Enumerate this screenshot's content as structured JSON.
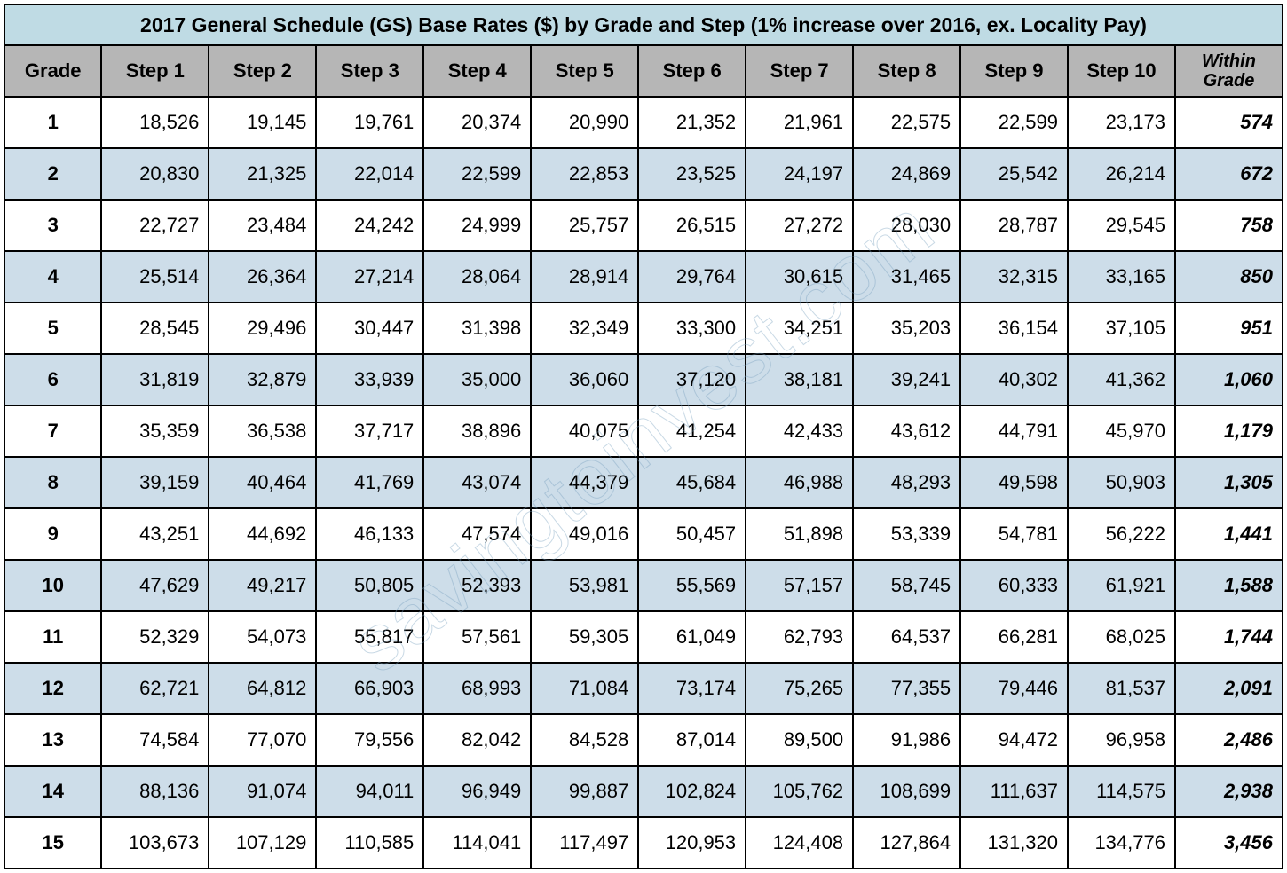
{
  "title": "2017 General Schedule (GS) Base Rates ($) by Grade and Step (1% increase over 2016, ex. Locality Pay)",
  "watermark": "savingtoinvest.com",
  "colors": {
    "title_bg": "#bfdbe4",
    "header_bg": "#b6b6b6",
    "row_alt_bg": "#cddde9",
    "row_bg": "#ffffff",
    "border": "#000000"
  },
  "columns": [
    "Grade",
    "Step 1",
    "Step 2",
    "Step 3",
    "Step 4",
    "Step 5",
    "Step 6",
    "Step 7",
    "Step 8",
    "Step 9",
    "Step 10",
    "Within Grade"
  ],
  "col_widths_pct": [
    7.6,
    8.4,
    8.4,
    8.4,
    8.4,
    8.4,
    8.4,
    8.4,
    8.4,
    8.4,
    8.4,
    8.4
  ],
  "rows": [
    {
      "grade": "1",
      "vals": [
        "18,526",
        "19,145",
        "19,761",
        "20,374",
        "20,990",
        "21,352",
        "21,961",
        "22,575",
        "22,599",
        "23,173"
      ],
      "wg": "574"
    },
    {
      "grade": "2",
      "vals": [
        "20,830",
        "21,325",
        "22,014",
        "22,599",
        "22,853",
        "23,525",
        "24,197",
        "24,869",
        "25,542",
        "26,214"
      ],
      "wg": "672"
    },
    {
      "grade": "3",
      "vals": [
        "22,727",
        "23,484",
        "24,242",
        "24,999",
        "25,757",
        "26,515",
        "27,272",
        "28,030",
        "28,787",
        "29,545"
      ],
      "wg": "758"
    },
    {
      "grade": "4",
      "vals": [
        "25,514",
        "26,364",
        "27,214",
        "28,064",
        "28,914",
        "29,764",
        "30,615",
        "31,465",
        "32,315",
        "33,165"
      ],
      "wg": "850"
    },
    {
      "grade": "5",
      "vals": [
        "28,545",
        "29,496",
        "30,447",
        "31,398",
        "32,349",
        "33,300",
        "34,251",
        "35,203",
        "36,154",
        "37,105"
      ],
      "wg": "951"
    },
    {
      "grade": "6",
      "vals": [
        "31,819",
        "32,879",
        "33,939",
        "35,000",
        "36,060",
        "37,120",
        "38,181",
        "39,241",
        "40,302",
        "41,362"
      ],
      "wg": "1,060"
    },
    {
      "grade": "7",
      "vals": [
        "35,359",
        "36,538",
        "37,717",
        "38,896",
        "40,075",
        "41,254",
        "42,433",
        "43,612",
        "44,791",
        "45,970"
      ],
      "wg": "1,179"
    },
    {
      "grade": "8",
      "vals": [
        "39,159",
        "40,464",
        "41,769",
        "43,074",
        "44,379",
        "45,684",
        "46,988",
        "48,293",
        "49,598",
        "50,903"
      ],
      "wg": "1,305"
    },
    {
      "grade": "9",
      "vals": [
        "43,251",
        "44,692",
        "46,133",
        "47,574",
        "49,016",
        "50,457",
        "51,898",
        "53,339",
        "54,781",
        "56,222"
      ],
      "wg": "1,441"
    },
    {
      "grade": "10",
      "vals": [
        "47,629",
        "49,217",
        "50,805",
        "52,393",
        "53,981",
        "55,569",
        "57,157",
        "58,745",
        "60,333",
        "61,921"
      ],
      "wg": "1,588"
    },
    {
      "grade": "11",
      "vals": [
        "52,329",
        "54,073",
        "55,817",
        "57,561",
        "59,305",
        "61,049",
        "62,793",
        "64,537",
        "66,281",
        "68,025"
      ],
      "wg": "1,744"
    },
    {
      "grade": "12",
      "vals": [
        "62,721",
        "64,812",
        "66,903",
        "68,993",
        "71,084",
        "73,174",
        "75,265",
        "77,355",
        "79,446",
        "81,537"
      ],
      "wg": "2,091"
    },
    {
      "grade": "13",
      "vals": [
        "74,584",
        "77,070",
        "79,556",
        "82,042",
        "84,528",
        "87,014",
        "89,500",
        "91,986",
        "94,472",
        "96,958"
      ],
      "wg": "2,486"
    },
    {
      "grade": "14",
      "vals": [
        "88,136",
        "91,074",
        "94,011",
        "96,949",
        "99,887",
        "102,824",
        "105,762",
        "108,699",
        "111,637",
        "114,575"
      ],
      "wg": "2,938"
    },
    {
      "grade": "15",
      "vals": [
        "103,673",
        "107,129",
        "110,585",
        "114,041",
        "117,497",
        "120,953",
        "124,408",
        "127,864",
        "131,320",
        "134,776"
      ],
      "wg": "3,456"
    }
  ]
}
